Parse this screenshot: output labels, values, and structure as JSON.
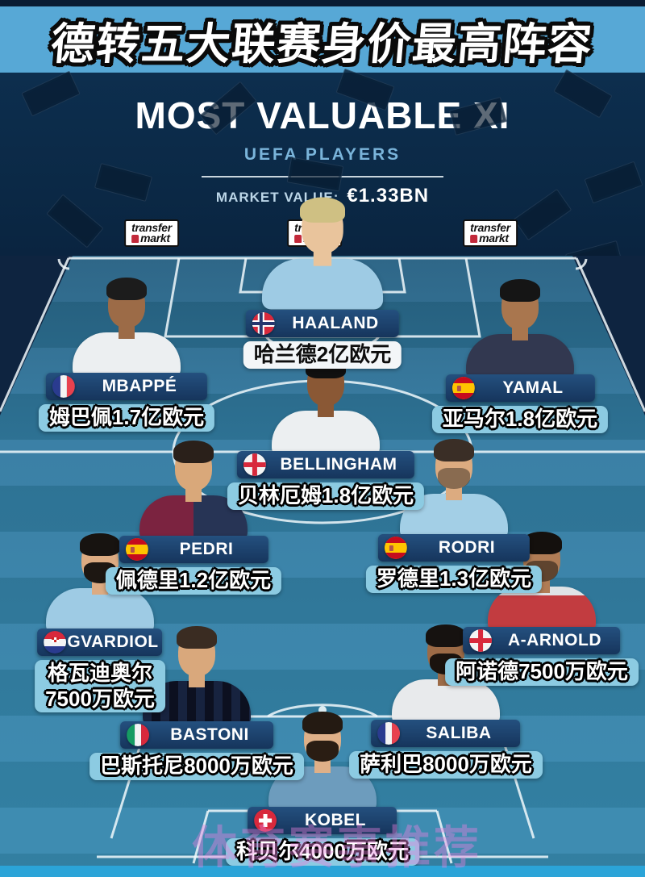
{
  "banner": {
    "title": "德转五大联赛身价最高阵容"
  },
  "header": {
    "title": "MOST VALUABLE XI",
    "subtitle": "UEFA PLAYERS",
    "market_value_label": "MARKET VALUE:",
    "market_value": "€1.33BN"
  },
  "brand": {
    "line1": "transfer",
    "line2": "markt"
  },
  "players": [
    {
      "id": "haaland",
      "name": "HAALAND",
      "flag": "norway",
      "value_lines": [
        "哈兰德2亿欧元"
      ],
      "variant": "white"
    },
    {
      "id": "mbappe",
      "name": "MBAPPÉ",
      "flag": "france",
      "value_lines": [
        "姆巴佩1.7亿欧元"
      ],
      "variant": "blue"
    },
    {
      "id": "yamal",
      "name": "YAMAL",
      "flag": "spain",
      "value_lines": [
        "亚马尔1.8亿欧元"
      ],
      "variant": "blue"
    },
    {
      "id": "bellingham",
      "name": "BELLINGHAM",
      "flag": "england",
      "value_lines": [
        "贝林厄姆1.8亿欧元"
      ],
      "variant": "blue"
    },
    {
      "id": "pedri",
      "name": "PEDRI",
      "flag": "spain",
      "value_lines": [
        "佩德里1.2亿欧元"
      ],
      "variant": "blue"
    },
    {
      "id": "rodri",
      "name": "RODRI",
      "flag": "spain",
      "value_lines": [
        "罗德里1.3亿欧元"
      ],
      "variant": "blue"
    },
    {
      "id": "gvardiol",
      "name": "GVARDIOL",
      "flag": "croatia",
      "value_lines": [
        "格瓦迪奥尔",
        "7500万欧元"
      ],
      "variant": "blue"
    },
    {
      "id": "aarnold",
      "name": "A-ARNOLD",
      "flag": "england",
      "value_lines": [
        "阿诺德7500万欧元"
      ],
      "variant": "blue"
    },
    {
      "id": "bastoni",
      "name": "BASTONI",
      "flag": "italy",
      "value_lines": [
        "巴斯托尼8000万欧元"
      ],
      "variant": "blue"
    },
    {
      "id": "saliba",
      "name": "SALIBA",
      "flag": "france",
      "value_lines": [
        "萨利巴8000万欧元"
      ],
      "variant": "blue"
    },
    {
      "id": "kobel",
      "name": "KOBEL",
      "flag": "switzerland",
      "value_lines": [
        "科贝尔4000万欧元"
      ],
      "variant": "blue"
    }
  ],
  "watermark": {
    "text": "体育赛事推荐"
  },
  "colors": {
    "banner_bg": "#57a8d6",
    "header_bg": "#0c2b4a",
    "pitch_light": "#3d83a9",
    "pitch_dark": "#2f7496",
    "badge_navy": "#1a3a64",
    "pill_blue": "#8ccbe2",
    "pill_white": "#f3f6f8",
    "subtitle_blue": "#7ab4da",
    "bottom_strip": "#2ba4d8"
  }
}
